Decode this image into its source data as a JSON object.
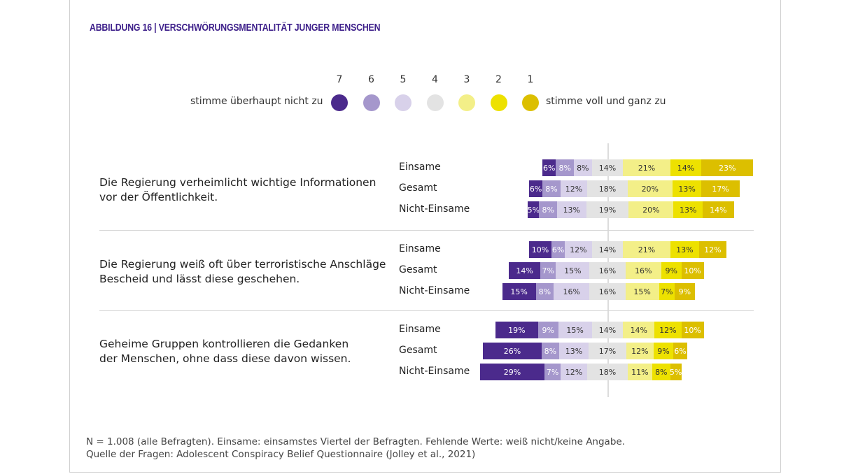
{
  "title": "ABBILDUNG 16 | VERSCHWÖRUNGSMENTALITÄT JUNGER MENSCHEN",
  "chart_data": {
    "type": "bar",
    "orientation": "horizontal diverging stacked",
    "legend": {
      "scale": [
        "7",
        "6",
        "5",
        "4",
        "3",
        "2",
        "1"
      ],
      "left_label": "stimme überhaupt nicht zu",
      "right_label": "stimme voll und ganz zu",
      "placement": "top"
    },
    "colors": {
      "7": "#4b2a8c",
      "6": "#a597cc",
      "5": "#d8d1ea",
      "4": "#e3e3e3",
      "3": "#f3ef88",
      "2": "#ede100",
      "1": "#dcbf00"
    },
    "questions": [
      {
        "text": "Die Regierung verheimlicht wichtige Informationen vor der Öffentlichkeit.",
        "lines": [
          "Die Regierung verheimlicht wichtige Informationen",
          "vor der Öffentlichkeit."
        ],
        "groups": [
          {
            "name": "Einsame",
            "values": [
              6,
              8,
              8,
              14,
              21,
              14,
              23
            ]
          },
          {
            "name": "Gesamt",
            "values": [
              6,
              8,
              12,
              18,
              20,
              13,
              17
            ]
          },
          {
            "name": "Nicht-Einsame",
            "values": [
              5,
              8,
              13,
              19,
              20,
              13,
              14
            ]
          }
        ]
      },
      {
        "text": "Die Regierung weiß oft über terroristische Anschläge Bescheid und lässt diese geschehen.",
        "lines": [
          "Die Regierung weiß oft über terroristische Anschläge",
          "Bescheid und lässt diese geschehen."
        ],
        "groups": [
          {
            "name": "Einsame",
            "values": [
              10,
              6,
              12,
              14,
              21,
              13,
              12
            ]
          },
          {
            "name": "Gesamt",
            "values": [
              14,
              7,
              15,
              16,
              16,
              9,
              10
            ]
          },
          {
            "name": "Nicht-Einsame",
            "values": [
              15,
              8,
              16,
              16,
              15,
              7,
              9
            ]
          }
        ]
      },
      {
        "text": "Geheime Gruppen kontrollieren die Gedanken der Menschen, ohne dass diese davon wissen.",
        "lines": [
          "Geheime Gruppen kontrollieren die Gedanken",
          "der Menschen, ohne dass diese davon wissen."
        ],
        "groups": [
          {
            "name": "Einsame",
            "values": [
              19,
              9,
              15,
              14,
              14,
              12,
              10
            ]
          },
          {
            "name": "Gesamt",
            "values": [
              26,
              8,
              13,
              17,
              12,
              9,
              6
            ]
          },
          {
            "name": "Nicht-Einsame",
            "values": [
              29,
              7,
              12,
              18,
              11,
              8,
              5
            ]
          }
        ]
      }
    ],
    "unit": "%"
  },
  "notes": [
    "N = 1.008 (alle Befragten). Einsame: einsamstes Viertel der Befragten. Fehlende Werte: weiß nicht/keine Angabe.",
    "Quelle der Fragen: Adolescent Conspiracy Belief Questionnaire (Jolley et al., 2021)"
  ]
}
